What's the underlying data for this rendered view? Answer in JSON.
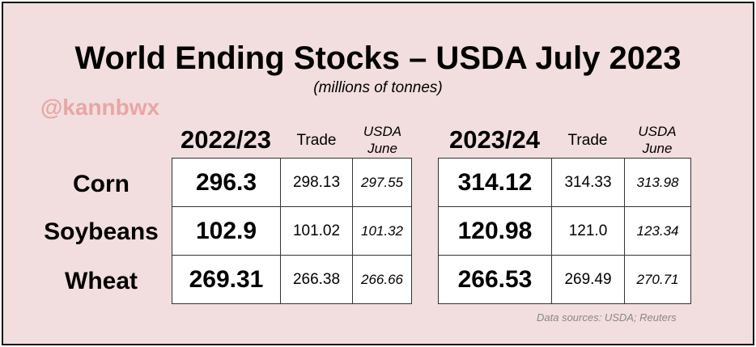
{
  "title": "World Ending Stocks – USDA July 2023",
  "subtitle": "(millions of tonnes)",
  "watermark": "@kannbwx",
  "source": "Data sources: USDA; Reuters",
  "colors": {
    "background": "#f2dede",
    "border": "#111111",
    "watermark": "#e8a6a6",
    "cell": "#ffffff"
  },
  "rows": [
    "Corn",
    "Soybeans",
    "Wheat"
  ],
  "headers": {
    "trade": "Trade",
    "usda_line1": "USDA",
    "usda_line2": "June"
  },
  "blocks": [
    {
      "year": "2022/23",
      "values": [
        {
          "usda": "296.3",
          "trade": "298.13",
          "june": "297.55"
        },
        {
          "usda": "102.9",
          "trade": "101.02",
          "june": "101.32"
        },
        {
          "usda": "269.31",
          "trade": "266.38",
          "june": "266.66"
        }
      ]
    },
    {
      "year": "2023/24",
      "values": [
        {
          "usda": "314.12",
          "trade": "314.33",
          "june": "313.98"
        },
        {
          "usda": "120.98",
          "trade": "121.0",
          "june": "123.34"
        },
        {
          "usda": "266.53",
          "trade": "269.49",
          "june": "270.71"
        }
      ]
    }
  ]
}
